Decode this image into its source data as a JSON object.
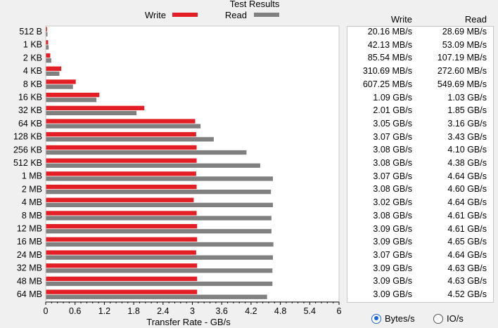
{
  "chart_data": {
    "type": "bar",
    "orientation": "horizontal",
    "title": "Test Results",
    "xlabel": "Transfer Rate - GB/s",
    "xlim": [
      0,
      6
    ],
    "xticks": [
      "0",
      "0.6",
      "1.2",
      "1.8",
      "2.4",
      "3",
      "3.6",
      "4.2",
      "4.8",
      "5.4",
      "6"
    ],
    "legend_placement": "top",
    "categories": [
      "512 B",
      "1 KB",
      "2 KB",
      "4 KB",
      "8 KB",
      "16 KB",
      "32 KB",
      "64 KB",
      "128 KB",
      "256 KB",
      "512 KB",
      "1 MB",
      "2 MB",
      "4 MB",
      "8 MB",
      "12 MB",
      "16 MB",
      "24 MB",
      "32 MB",
      "48 MB",
      "64 MB"
    ],
    "series": [
      {
        "name": "Write",
        "color": "#e31e24",
        "values": [
          0.02016,
          0.04213,
          0.08554,
          0.31069,
          0.60725,
          1.09,
          2.01,
          3.05,
          3.07,
          3.08,
          3.08,
          3.07,
          3.08,
          3.02,
          3.08,
          3.09,
          3.09,
          3.07,
          3.09,
          3.09,
          3.09
        ]
      },
      {
        "name": "Read",
        "color": "#808080",
        "values": [
          0.02869,
          0.05309,
          0.10719,
          0.2726,
          0.54969,
          1.03,
          1.85,
          3.16,
          3.43,
          4.1,
          4.38,
          4.64,
          4.6,
          4.64,
          4.61,
          4.61,
          4.65,
          4.64,
          4.63,
          4.63,
          4.52
        ]
      }
    ]
  },
  "results": {
    "write_header": "Write",
    "read_header": "Read",
    "write": [
      "20.16 MB/s",
      "42.13 MB/s",
      "85.54 MB/s",
      "310.69 MB/s",
      "607.25 MB/s",
      "1.09 GB/s",
      "2.01 GB/s",
      "3.05 GB/s",
      "3.07 GB/s",
      "3.08 GB/s",
      "3.08 GB/s",
      "3.07 GB/s",
      "3.08 GB/s",
      "3.02 GB/s",
      "3.08 GB/s",
      "3.09 GB/s",
      "3.09 GB/s",
      "3.07 GB/s",
      "3.09 GB/s",
      "3.09 GB/s",
      "3.09 GB/s"
    ],
    "read": [
      "28.69 MB/s",
      "53.09 MB/s",
      "107.19 MB/s",
      "272.60 MB/s",
      "549.69 MB/s",
      "1.03 GB/s",
      "1.85 GB/s",
      "3.16 GB/s",
      "3.43 GB/s",
      "4.10 GB/s",
      "4.38 GB/s",
      "4.64 GB/s",
      "4.60 GB/s",
      "4.64 GB/s",
      "4.61 GB/s",
      "4.61 GB/s",
      "4.65 GB/s",
      "4.64 GB/s",
      "4.63 GB/s",
      "4.63 GB/s",
      "4.52 GB/s"
    ]
  },
  "units": {
    "options": [
      "Bytes/s",
      "IO/s"
    ],
    "selected": "Bytes/s"
  }
}
